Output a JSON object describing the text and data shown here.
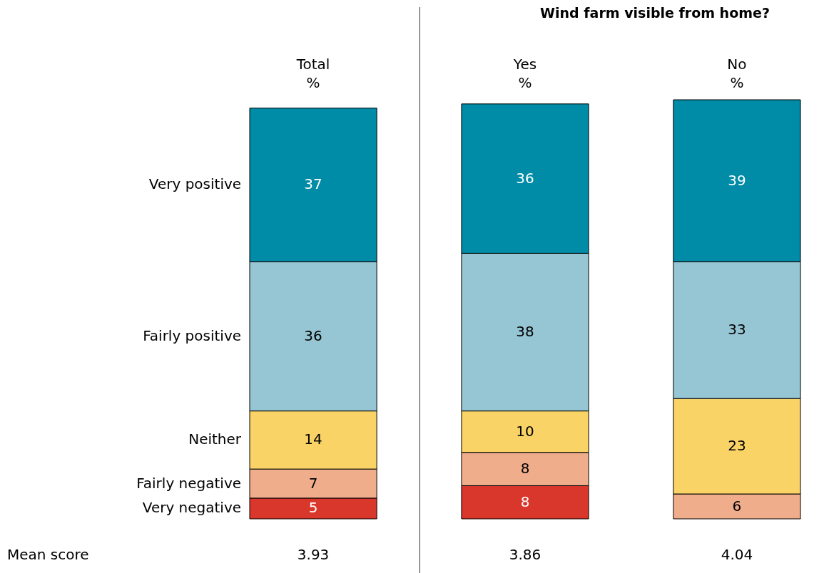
{
  "chart_data": {
    "type": "bar",
    "stacked": true,
    "data_labels": true,
    "legend": "left",
    "ylabel": "%",
    "categories": [
      "Total",
      "Yes",
      "No"
    ],
    "series": [
      {
        "name": "Very negative",
        "color": "#da372c",
        "values": [
          5,
          8,
          null
        ]
      },
      {
        "name": "Fairly negative",
        "color": "#f0ad8c",
        "values": [
          7,
          8,
          6
        ]
      },
      {
        "name": "Neither",
        "color": "#f9d366",
        "values": [
          14,
          10,
          23
        ]
      },
      {
        "name": "Fairly positive",
        "color": "#96c5d3",
        "values": [
          36,
          38,
          33
        ]
      },
      {
        "name": "Very positive",
        "color": "#008ba6",
        "values": [
          37,
          36,
          39
        ]
      }
    ],
    "annotations": [
      "Wind farm visible from home?",
      "Mean score",
      "3.93",
      "3.86",
      "4.04"
    ]
  }
}
